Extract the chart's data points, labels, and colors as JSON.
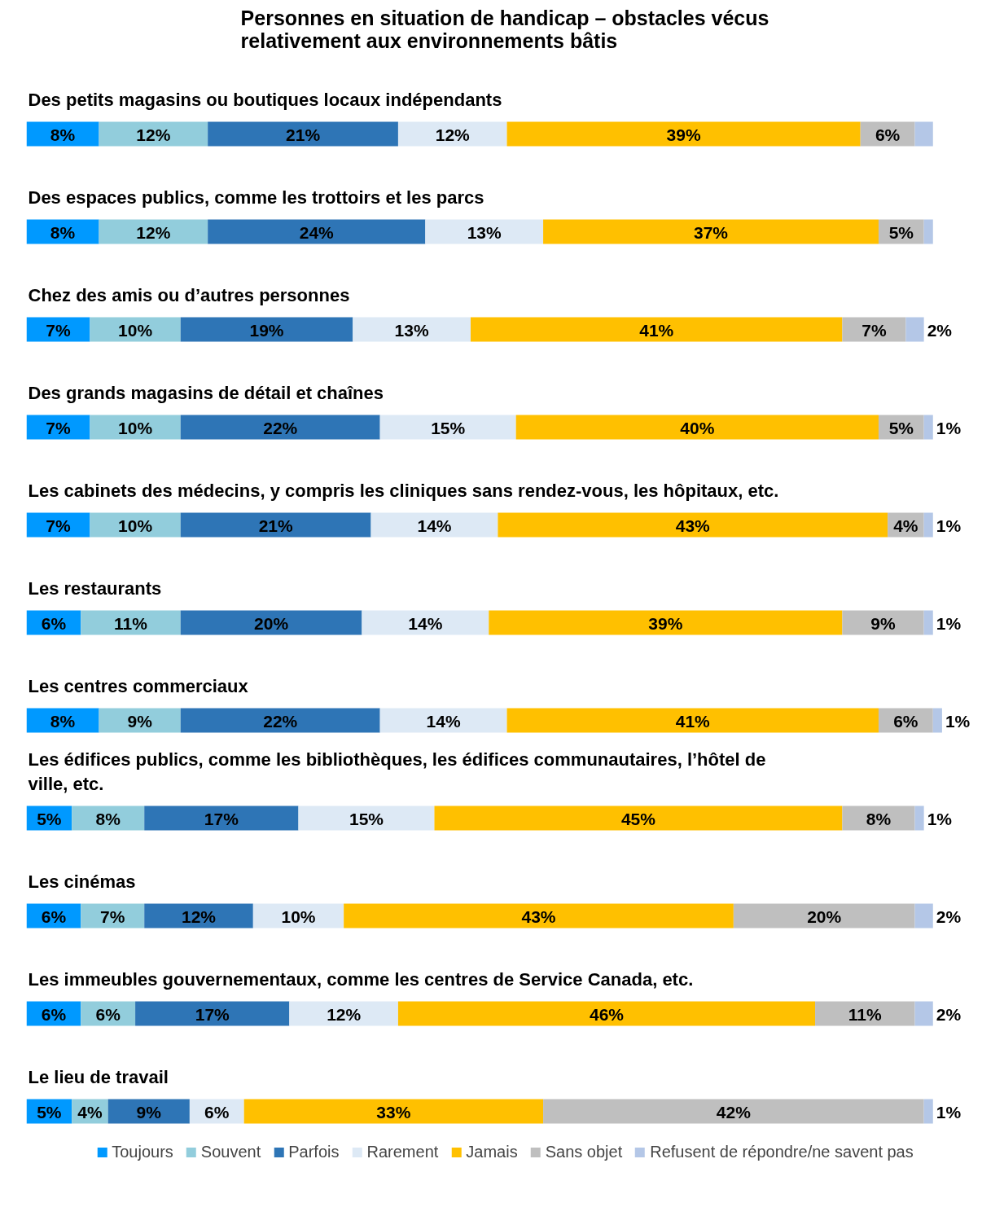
{
  "chart_data": {
    "type": "bar",
    "orientation": "horizontal",
    "stacked": true,
    "title": "Personnes en situation de handicap – obstacles vécus relativement aux environnements bâtis",
    "categories": [
      "Des petits magasins ou boutiques locaux indépendants",
      "Des espaces publics, comme les trottoirs et les parcs",
      "Chez des amis ou d’autres personnes",
      "Des grands magasins de détail et chaînes",
      "Les cabinets des médecins, y compris les cliniques sans rendez-vous, les hôpitaux, etc.",
      "Les restaurants",
      "Les centres commerciaux",
      "Les édifices publics, comme les bibliothèques, les édifices communautaires, l’hôtel de ville, etc.",
      "Les cinémas",
      "Les immeubles gouvernementaux, comme les centres de Service Canada, etc.",
      "Le lieu de travail"
    ],
    "series": [
      {
        "name": "Toujours",
        "color": "#0099ff",
        "values": [
          8,
          8,
          7,
          7,
          7,
          6,
          8,
          5,
          6,
          6,
          5
        ],
        "value_labels": [
          "8%",
          "8%",
          "7%",
          "7%",
          "7%",
          "6%",
          "8%",
          "5%",
          "6%",
          "6%",
          "5%"
        ]
      },
      {
        "name": "Souvent",
        "color": "#92cddc",
        "values": [
          12,
          12,
          10,
          10,
          10,
          11,
          9,
          8,
          7,
          6,
          4
        ],
        "value_labels": [
          "12%",
          "12%",
          "10%",
          "10%",
          "10%",
          "11%",
          "9%",
          "8%",
          "7%",
          "6%",
          "4%"
        ]
      },
      {
        "name": "Parfois",
        "color": "#2e75b6",
        "values": [
          21,
          24,
          19,
          22,
          21,
          20,
          22,
          17,
          12,
          17,
          9
        ],
        "value_labels": [
          "21%",
          "24%",
          "19%",
          "22%",
          "21%",
          "20%",
          "22%",
          "17%",
          "12%",
          "17%",
          "9%"
        ]
      },
      {
        "name": "Rarement",
        "color": "#dde9f5",
        "values": [
          12,
          13,
          13,
          15,
          14,
          14,
          14,
          15,
          10,
          12,
          6
        ],
        "value_labels": [
          "12%",
          "13%",
          "13%",
          "15%",
          "14%",
          "14%",
          "14%",
          "15%",
          "10%",
          "12%",
          "6%"
        ]
      },
      {
        "name": "Jamais",
        "color": "#ffc000",
        "values": [
          39,
          37,
          41,
          40,
          43,
          39,
          41,
          45,
          43,
          46,
          33
        ],
        "value_labels": [
          "39%",
          "37%",
          "41%",
          "40%",
          "43%",
          "39%",
          "41%",
          "45%",
          "43%",
          "46%",
          "33%"
        ]
      },
      {
        "name": "Sans objet",
        "color": "#bfbfbf",
        "values": [
          6,
          5,
          7,
          5,
          4,
          9,
          6,
          8,
          20,
          11,
          42
        ],
        "value_labels": [
          "6%",
          "5%",
          "7%",
          "5%",
          "4%",
          "9%",
          "6%",
          "8%",
          "20%",
          "11%",
          "42%"
        ]
      },
      {
        "name": "Refusent de répondre/ne savent pas",
        "color": "#b4c7e7",
        "values": [
          2,
          1,
          2,
          1,
          1,
          1,
          1,
          1,
          2,
          2,
          1
        ],
        "value_labels": [
          null,
          null,
          "2%",
          "1%",
          "1%",
          "1%",
          "1%",
          "1%",
          "2%",
          "2%",
          "1%"
        ]
      }
    ],
    "tick_labels": "y",
    "legend": "bottom"
  }
}
